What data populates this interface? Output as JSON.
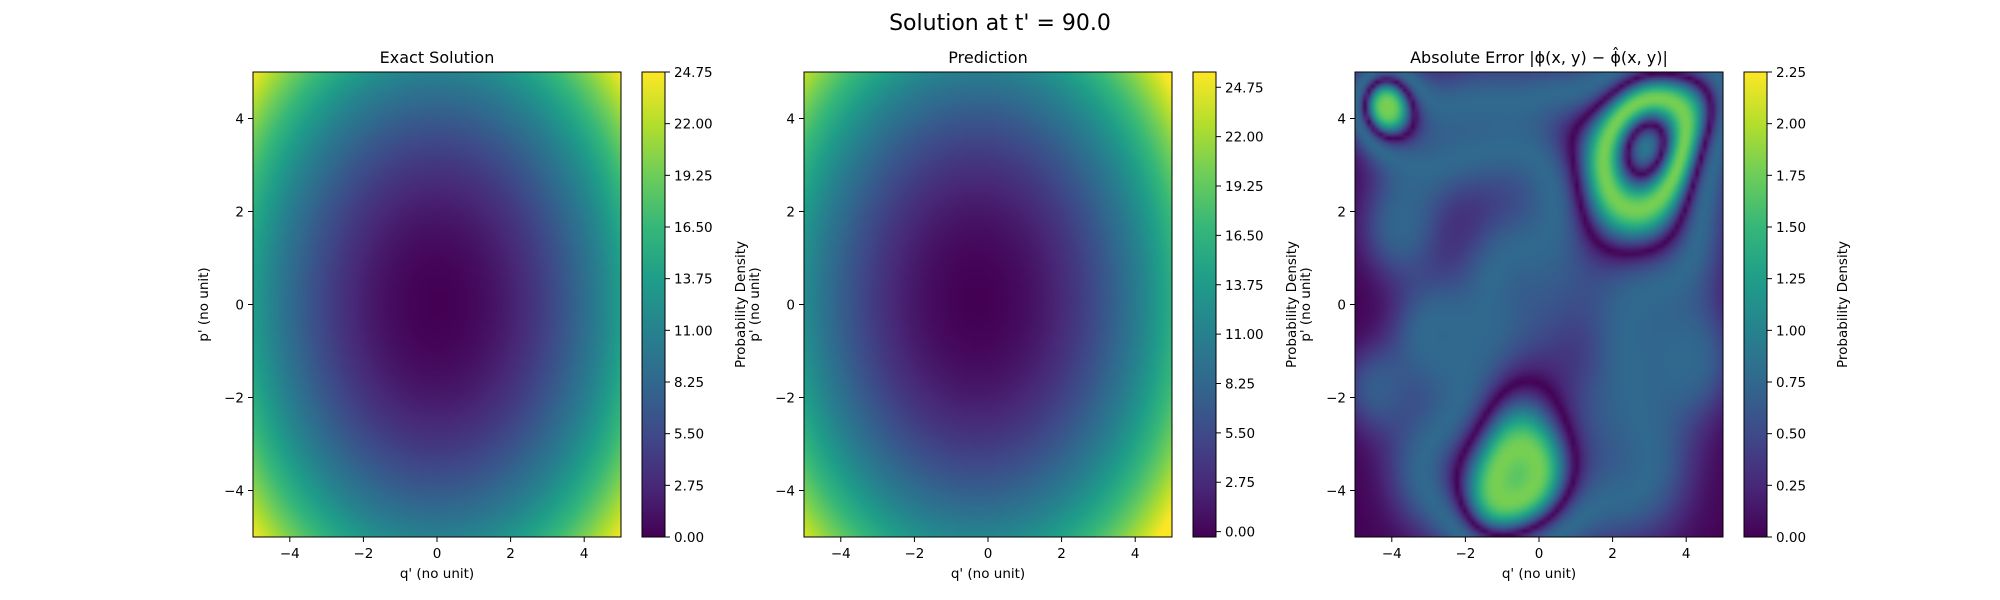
{
  "figure": {
    "suptitle": "Solution at t' = 90.0"
  },
  "chart_data": [
    {
      "type": "heatmap",
      "title": "Exact Solution",
      "xlabel": "q' (no unit)",
      "ylabel": "p' (no unit)",
      "xlim": [
        -5,
        5
      ],
      "ylim": [
        -5,
        5
      ],
      "x_ticks": [
        "−4",
        "−2",
        "0",
        "2",
        "4"
      ],
      "x_tick_values": [
        -4,
        -2,
        0,
        2,
        4
      ],
      "y_ticks": [
        "−4",
        "−2",
        "0",
        "2",
        "4"
      ],
      "y_tick_values": [
        -4,
        -2,
        0,
        2,
        4
      ],
      "colormap": "viridis",
      "colorbar": {
        "label": "Probability Density",
        "range": [
          0,
          24.75
        ],
        "ticks": [
          "0.00",
          "2.75",
          "5.50",
          "8.25",
          "11.00",
          "13.75",
          "16.50",
          "19.25",
          "22.00",
          "24.75"
        ],
        "tick_values": [
          0,
          2.75,
          5.5,
          8.25,
          11.0,
          13.75,
          16.5,
          19.25,
          22.0,
          24.75
        ]
      },
      "field": {
        "kind": "quadratic",
        "center": [
          0,
          0
        ],
        "a": 0.55,
        "b": 0.44,
        "max": 24.75
      }
    },
    {
      "type": "heatmap",
      "title": "Prediction",
      "xlabel": "q' (no unit)",
      "ylabel": "p' (no unit)",
      "xlim": [
        -5,
        5
      ],
      "ylim": [
        -5,
        5
      ],
      "x_ticks": [
        "−4",
        "−2",
        "0",
        "2",
        "4"
      ],
      "x_tick_values": [
        -4,
        -2,
        0,
        2,
        4
      ],
      "y_ticks": [
        "−4",
        "−2",
        "0",
        "2",
        "4"
      ],
      "y_tick_values": [
        -4,
        -2,
        0,
        2,
        4
      ],
      "colormap": "viridis",
      "colorbar": {
        "label": "Probability Density",
        "range": [
          -0.3,
          25.6
        ],
        "ticks": [
          "0.00",
          "2.75",
          "5.50",
          "8.25",
          "11.00",
          "13.75",
          "16.50",
          "19.25",
          "22.00",
          "24.75"
        ],
        "tick_values": [
          0,
          2.75,
          5.5,
          8.25,
          11.0,
          13.75,
          16.5,
          19.25,
          22.0,
          24.75
        ]
      },
      "field": {
        "kind": "quadratic",
        "center": [
          -0.3,
          0.1
        ],
        "a": 0.55,
        "b": 0.44,
        "max": 24.75
      }
    },
    {
      "type": "heatmap",
      "title": "Absolute Error |ϕ(x, y) − ϕ̂(x, y)|",
      "xlabel": "q' (no unit)",
      "ylabel": "p' (no unit)",
      "xlim": [
        -5,
        5
      ],
      "ylim": [
        -5,
        5
      ],
      "x_ticks": [
        "−4",
        "−2",
        "0",
        "2",
        "4"
      ],
      "x_tick_values": [
        -4,
        -2,
        0,
        2,
        4
      ],
      "y_ticks": [
        "−4",
        "−2",
        "0",
        "2",
        "4"
      ],
      "y_tick_values": [
        -4,
        -2,
        0,
        2,
        4
      ],
      "colormap": "viridis",
      "colorbar": {
        "label": "Probability Density",
        "range": [
          0,
          2.25
        ],
        "ticks": [
          "0.00",
          "0.25",
          "0.50",
          "0.75",
          "1.00",
          "1.25",
          "1.50",
          "1.75",
          "2.00",
          "2.25"
        ],
        "tick_values": [
          0,
          0.25,
          0.5,
          0.75,
          1.0,
          1.25,
          1.5,
          1.75,
          2.0,
          2.25
        ]
      },
      "field": {
        "kind": "blobs",
        "max": 2.25,
        "blobs": [
          [
            3.2,
            3.8,
            1.1,
            2.1
          ],
          [
            2.3,
            2.6,
            1.2,
            1.5
          ],
          [
            -0.4,
            -3.8,
            1.1,
            1.95
          ],
          [
            -4.2,
            4.3,
            0.6,
            1.9
          ],
          [
            -1.5,
            3.9,
            1.0,
            0.8
          ],
          [
            -3.2,
            3.5,
            0.9,
            0.75
          ],
          [
            1.0,
            0.5,
            1.4,
            0.7
          ],
          [
            -3.8,
            1.6,
            0.8,
            0.7
          ],
          [
            -0.8,
            -1.8,
            1.2,
            0.9
          ],
          [
            -2.8,
            -3.6,
            1.0,
            0.8
          ],
          [
            2.5,
            -3.5,
            1.2,
            0.9
          ],
          [
            4.2,
            -1.2,
            0.9,
            0.7
          ],
          [
            -2.9,
            -0.6,
            0.8,
            0.75
          ],
          [
            1.5,
            -1.2,
            1.1,
            0.6
          ],
          [
            -1.0,
            0.7,
            0.9,
            0.55
          ],
          [
            3.8,
            1.2,
            1.0,
            0.6
          ],
          [
            0.4,
            4.0,
            0.9,
            0.7
          ],
          [
            -4.5,
            -1.8,
            0.7,
            0.6
          ],
          [
            4.6,
            4.5,
            0.7,
            0.6
          ],
          [
            -1.5,
            -4.6,
            0.7,
            0.55
          ]
        ]
      }
    }
  ]
}
